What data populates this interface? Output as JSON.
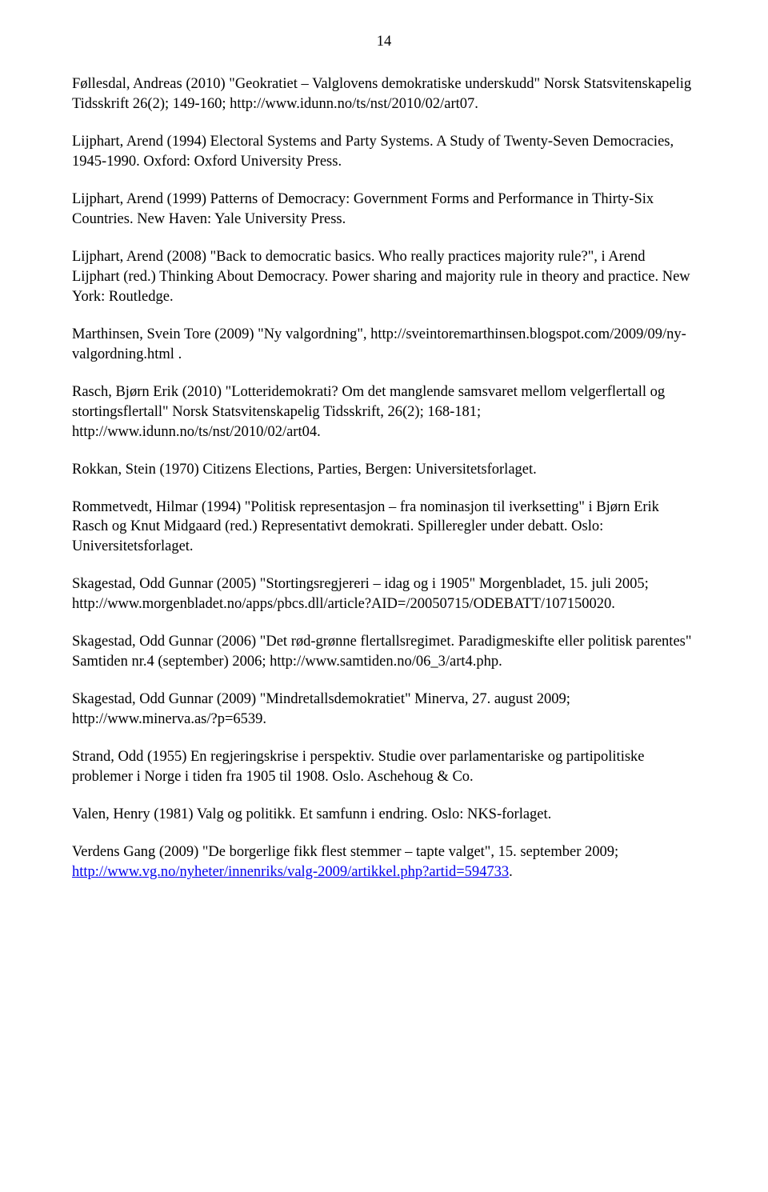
{
  "page_number": "14",
  "entries": [
    {
      "text": "Føllesdal, Andreas (2010) \"Geokratiet – Valglovens demokratiske underskudd\" Norsk Statsvitenskapelig Tidsskrift 26(2); 149-160; http://www.idunn.no/ts/nst/2010/02/art07."
    },
    {
      "text": "Lijphart, Arend (1994) Electoral Systems and Party Systems. A Study of Twenty-Seven Democracies, 1945-1990. Oxford: Oxford University Press."
    },
    {
      "text": "Lijphart, Arend (1999) Patterns of Democracy: Government Forms and Performance in Thirty-Six Countries. New Haven: Yale University Press."
    },
    {
      "text": "Lijphart, Arend (2008) \"Back to democratic basics. Who really practices majority rule?\", i Arend Lijphart (red.) Thinking About Democracy. Power sharing and majority rule in theory and practice. New York: Routledge."
    },
    {
      "text": "Marthinsen, Svein Tore (2009) \"Ny valgordning\", http://sveintoremarthinsen.blogspot.com/2009/09/ny-valgordning.html ."
    },
    {
      "text": "Rasch, Bjørn Erik (2010) \"Lotteridemokrati? Om det manglende samsvaret mellom velgerflertall og stortingsflertall\" Norsk Statsvitenskapelig Tidsskrift, 26(2); 168-181; http://www.idunn.no/ts/nst/2010/02/art04."
    },
    {
      "text": "Rokkan, Stein (1970) Citizens Elections, Parties, Bergen: Universitetsforlaget."
    },
    {
      "text": "Rommetvedt, Hilmar (1994) \"Politisk representasjon – fra nominasjon til iverksetting\" i Bjørn Erik Rasch og Knut Midgaard (red.) Representativt demokrati. Spilleregler under debatt. Oslo: Universitetsforlaget."
    },
    {
      "text": "Skagestad, Odd Gunnar (2005) \"Stortingsregjereri – idag og i 1905\" Morgenbladet, 15. juli 2005; http://www.morgenbladet.no/apps/pbcs.dll/article?AID=/20050715/ODEBATT/107150020."
    },
    {
      "text": "Skagestad, Odd Gunnar (2006) \"Det rød-grønne flertallsregimet. Paradigmeskifte eller politisk parentes\" Samtiden nr.4 (september) 2006; http://www.samtiden.no/06_3/art4.php."
    },
    {
      "text": "Skagestad, Odd Gunnar (2009) \"Mindretallsdemokratiet\" Minerva, 27. august 2009; http://www.minerva.as/?p=6539."
    },
    {
      "text": "Strand, Odd (1955) En regjeringskrise i perspektiv. Studie over parlamentariske og partipolitiske problemer i Norge i tiden fra 1905 til 1908. Oslo. Aschehoug & Co."
    },
    {
      "text": "Valen, Henry (1981) Valg og politikk. Et samfunn i endring. Oslo: NKS-forlaget."
    }
  ],
  "last_entry": {
    "prefix": "Verdens Gang (2009) \"De borgerlige fikk flest stemmer – tapte valget\", 15. september 2009; ",
    "link_text": "http://www.vg.no/nyheter/innenriks/valg-2009/artikkel.php?artid=594733",
    "suffix": "."
  }
}
